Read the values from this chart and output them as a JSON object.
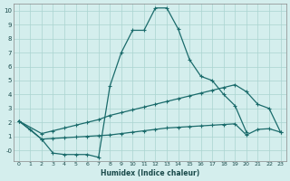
{
  "xlabel": "Humidex (Indice chaleur)",
  "background_color": "#d4eeed",
  "grid_color": "#aad4d0",
  "line_color": "#1a6b6b",
  "xlim": [
    -0.5,
    23.5
  ],
  "ylim": [
    -0.75,
    10.5
  ],
  "xticks": [
    0,
    1,
    2,
    3,
    4,
    5,
    6,
    7,
    8,
    9,
    10,
    11,
    12,
    13,
    14,
    15,
    16,
    17,
    18,
    19,
    20,
    21,
    22,
    23
  ],
  "yticks": [
    0,
    1,
    2,
    3,
    4,
    5,
    6,
    7,
    8,
    9,
    10
  ],
  "line1_x": [
    0,
    1,
    2,
    3,
    4,
    5,
    6,
    7,
    8,
    9,
    10,
    11,
    12,
    13,
    14,
    15,
    16,
    17,
    18,
    19,
    20
  ],
  "line1_y": [
    2.1,
    1.5,
    0.8,
    -0.2,
    -0.3,
    -0.3,
    -0.3,
    -0.5,
    4.6,
    7.0,
    8.6,
    8.6,
    10.2,
    10.2,
    8.7,
    6.5,
    5.3,
    5.0,
    4.0,
    3.2,
    1.3
  ],
  "line2_x": [
    0,
    2,
    3,
    4,
    5,
    6,
    7,
    8,
    9,
    10,
    11,
    12,
    13,
    14,
    15,
    16,
    17,
    18,
    19,
    20,
    21,
    22,
    23
  ],
  "line2_y": [
    2.1,
    1.2,
    1.4,
    1.6,
    1.8,
    2.0,
    2.2,
    2.5,
    2.7,
    2.9,
    3.1,
    3.3,
    3.5,
    3.7,
    3.9,
    4.1,
    4.3,
    4.5,
    4.7,
    4.2,
    3.3,
    3.0,
    1.3
  ],
  "line3_x": [
    0,
    2,
    3,
    4,
    5,
    6,
    7,
    8,
    9,
    10,
    11,
    12,
    13,
    14,
    15,
    16,
    17,
    18,
    19,
    20,
    21,
    22,
    23
  ],
  "line3_y": [
    2.1,
    0.8,
    0.85,
    0.9,
    0.95,
    1.0,
    1.05,
    1.1,
    1.2,
    1.3,
    1.4,
    1.5,
    1.6,
    1.65,
    1.7,
    1.75,
    1.8,
    1.85,
    1.9,
    1.1,
    1.5,
    1.55,
    1.3
  ]
}
